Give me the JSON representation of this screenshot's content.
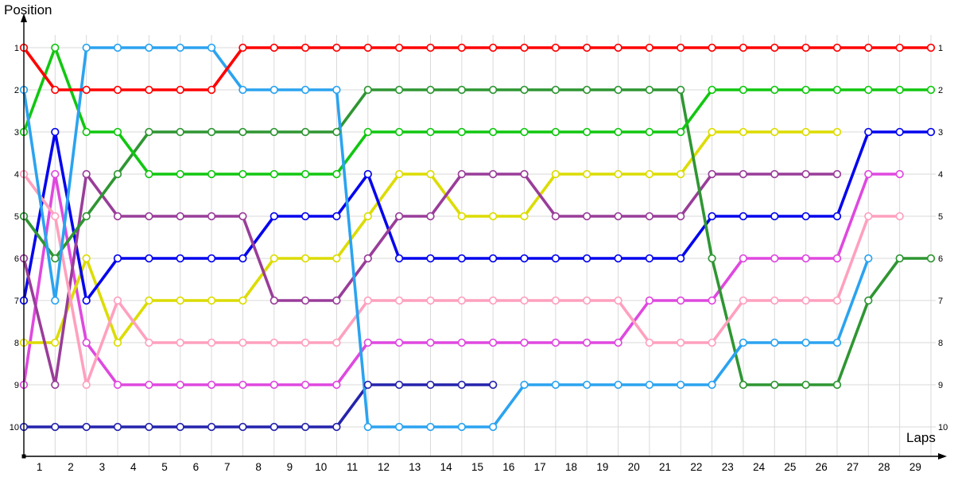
{
  "page": {
    "y_axis_label": "Position",
    "x_axis_label": "Laps"
  },
  "axes": {
    "left_ticks": [
      "1",
      "2",
      "3",
      "4",
      "5",
      "6",
      "7",
      "8",
      "9",
      "10"
    ],
    "right_ticks": [
      "1",
      "2",
      "3",
      "4",
      "5",
      "6",
      "7",
      "8",
      "9",
      "10"
    ],
    "bottom_ticks": [
      "1",
      "2",
      "3",
      "4",
      "5",
      "6",
      "7",
      "8",
      "9",
      "10",
      "11",
      "12",
      "13",
      "14",
      "15",
      "16",
      "17",
      "18",
      "19",
      "20",
      "21",
      "22",
      "23",
      "24",
      "25",
      "26",
      "27",
      "28",
      "29"
    ]
  },
  "chart_data": {
    "type": "line",
    "title": "",
    "xlabel": "Laps",
    "ylabel": "Position",
    "x_range": [
      0,
      29
    ],
    "x_note": "column 0 = starting grid, column N = position at end of lap N; lap labels sit between columns",
    "ylim": [
      1,
      10
    ],
    "y_inverted": true,
    "grid": true,
    "legend_position": "none",
    "marker": "open-circle",
    "series": [
      {
        "name": "red",
        "color": "#FF0000",
        "positions": [
          1,
          2,
          2,
          2,
          2,
          2,
          2,
          1,
          1,
          1,
          1,
          1,
          1,
          1,
          1,
          1,
          1,
          1,
          1,
          1,
          1,
          1,
          1,
          1,
          1,
          1,
          1,
          1,
          1,
          1
        ]
      },
      {
        "name": "sky-blue",
        "color": "#2BA3F0",
        "positions": [
          2,
          7,
          1,
          1,
          1,
          1,
          1,
          2,
          2,
          2,
          2,
          10,
          10,
          10,
          10,
          10,
          9,
          9,
          9,
          9,
          9,
          9,
          9,
          8,
          8,
          8,
          8,
          6,
          null,
          null
        ]
      },
      {
        "name": "light-green",
        "color": "#11C711",
        "positions": [
          3,
          1,
          3,
          3,
          4,
          4,
          4,
          4,
          4,
          4,
          4,
          3,
          3,
          3,
          3,
          3,
          3,
          3,
          3,
          3,
          3,
          3,
          2,
          2,
          2,
          2,
          2,
          2,
          2,
          2
        ]
      },
      {
        "name": "pink",
        "color": "#FFA0BE",
        "positions": [
          4,
          5,
          9,
          7,
          8,
          8,
          8,
          8,
          8,
          8,
          8,
          7,
          7,
          7,
          7,
          7,
          7,
          7,
          7,
          7,
          8,
          8,
          8,
          7,
          7,
          7,
          7,
          5,
          5,
          null
        ]
      },
      {
        "name": "dark-green",
        "color": "#2E9632",
        "positions": [
          5,
          6,
          5,
          4,
          3,
          3,
          3,
          3,
          3,
          3,
          3,
          2,
          2,
          2,
          2,
          2,
          2,
          2,
          2,
          2,
          2,
          2,
          6,
          9,
          9,
          9,
          9,
          7,
          6,
          6
        ]
      },
      {
        "name": "purple",
        "color": "#993D99",
        "positions": [
          6,
          9,
          4,
          5,
          5,
          5,
          5,
          5,
          7,
          7,
          7,
          6,
          5,
          5,
          4,
          4,
          4,
          5,
          5,
          5,
          5,
          5,
          4,
          4,
          4,
          4,
          4,
          null,
          null,
          null
        ]
      },
      {
        "name": "blue",
        "color": "#0505EE",
        "positions": [
          7,
          3,
          7,
          6,
          6,
          6,
          6,
          6,
          5,
          5,
          5,
          4,
          6,
          6,
          6,
          6,
          6,
          6,
          6,
          6,
          6,
          6,
          5,
          5,
          5,
          5,
          5,
          3,
          3,
          3
        ]
      },
      {
        "name": "yellow",
        "color": "#DCDC00",
        "positions": [
          8,
          8,
          6,
          8,
          7,
          7,
          7,
          7,
          6,
          6,
          6,
          5,
          4,
          4,
          5,
          5,
          5,
          4,
          4,
          4,
          4,
          4,
          3,
          3,
          3,
          3,
          3,
          null,
          null,
          null
        ]
      },
      {
        "name": "magenta",
        "color": "#DF48DF",
        "positions": [
          9,
          4,
          8,
          9,
          9,
          9,
          9,
          9,
          9,
          9,
          9,
          8,
          8,
          8,
          8,
          8,
          8,
          8,
          8,
          8,
          7,
          7,
          7,
          6,
          6,
          6,
          6,
          4,
          4,
          null
        ]
      },
      {
        "name": "navy",
        "color": "#2424AC",
        "positions": [
          10,
          10,
          10,
          10,
          10,
          10,
          10,
          10,
          10,
          10,
          10,
          9,
          9,
          9,
          9,
          9,
          null,
          null,
          null,
          null,
          null,
          null,
          null,
          null,
          null,
          null,
          null,
          null,
          null,
          null
        ]
      }
    ]
  },
  "colors": {
    "grid": "#D9D9D9",
    "axis": "#000000",
    "background": "#FFFFFF",
    "marker_fill": "#FFFFFF",
    "tick_text": "#000000"
  }
}
